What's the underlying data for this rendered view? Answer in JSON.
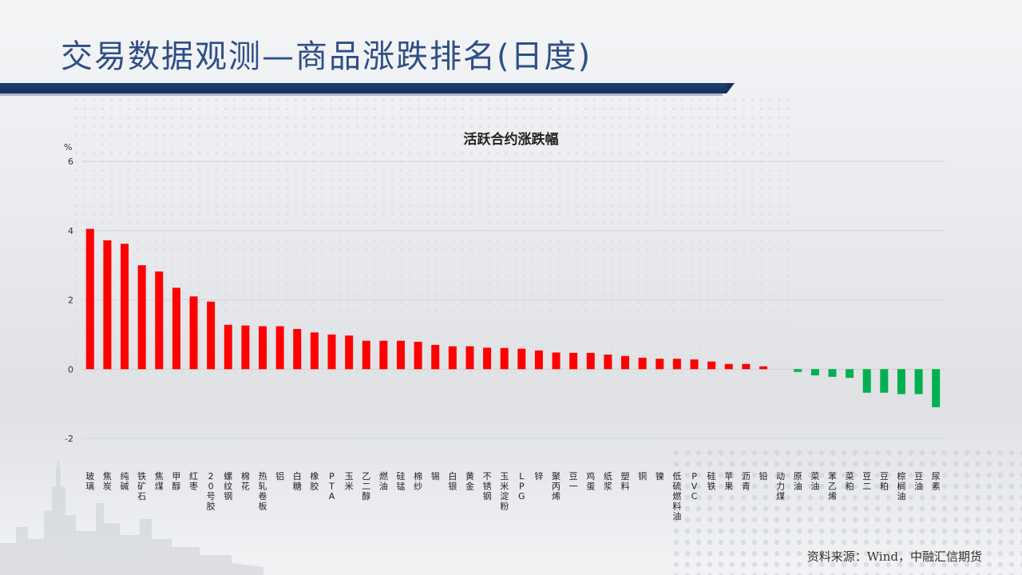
{
  "slide": {
    "title": "交易数据观测—商品涨跌排名(日度)",
    "source": "资料来源：Wind，中融汇信期货"
  },
  "colors": {
    "positive": "#ff0000",
    "negative": "#00b050",
    "title": "#2f4f86",
    "bar": "#1f3f78"
  },
  "chart_data": {
    "type": "bar",
    "title": "活跃合约涨跌幅",
    "ylabel": "%",
    "ylim": [
      -2,
      6
    ],
    "yticks": [
      -2,
      0,
      2,
      4,
      6
    ],
    "grid": true,
    "categories": [
      "玻璃",
      "焦炭",
      "纯碱",
      "铁矿石",
      "焦煤",
      "甲醇",
      "红枣",
      "20号胶",
      "螺纹钢",
      "棉花",
      "热轧卷板",
      "铝",
      "白糖",
      "橡胶",
      "PTA",
      "玉米",
      "乙二醇",
      "燃油",
      "硅锰",
      "棉纱",
      "锡",
      "白银",
      "黄金",
      "不锈钢",
      "玉米淀粉",
      "LPG",
      "锌",
      "聚丙烯",
      "豆一",
      "鸡蛋",
      "纸浆",
      "塑料",
      "铜",
      "镍",
      "低硫燃料油",
      "PVC",
      "硅铁",
      "苹果",
      "沥青",
      "铅",
      "动力煤",
      "原油",
      "菜油",
      "苯乙烯",
      "菜粕",
      "豆二",
      "豆粕",
      "棕榈油",
      "豆油",
      "尿素"
    ],
    "values": [
      4.05,
      3.72,
      3.62,
      3.0,
      2.82,
      2.35,
      2.1,
      1.95,
      1.28,
      1.26,
      1.24,
      1.24,
      1.16,
      1.06,
      1.0,
      0.97,
      0.82,
      0.82,
      0.82,
      0.79,
      0.7,
      0.66,
      0.66,
      0.62,
      0.61,
      0.59,
      0.54,
      0.48,
      0.47,
      0.47,
      0.42,
      0.38,
      0.33,
      0.3,
      0.3,
      0.28,
      0.22,
      0.15,
      0.15,
      0.08,
      0.0,
      -0.08,
      -0.18,
      -0.22,
      -0.25,
      -0.68,
      -0.68,
      -0.72,
      -0.72,
      -1.1
    ]
  }
}
